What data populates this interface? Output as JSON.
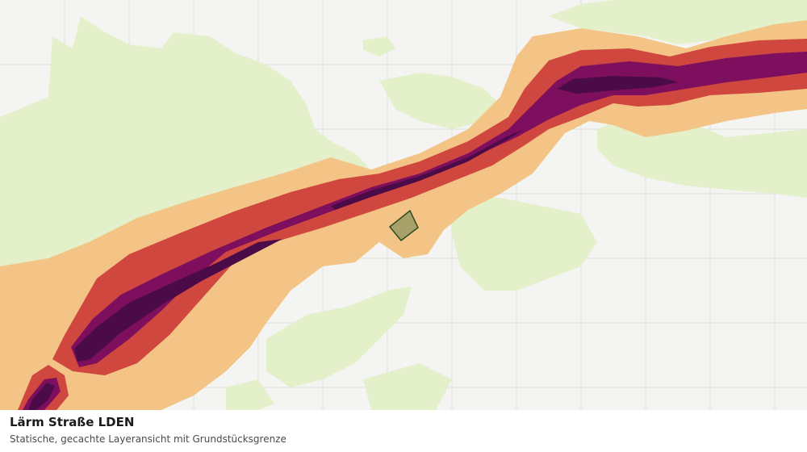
{
  "map": {
    "layer_name": "Lärm Straße LDEN",
    "colors": {
      "background": "#f4f5f3",
      "grid": "#dcdedb",
      "green_area": "#e3f0c9",
      "noise_band_1": "#f3c485",
      "noise_band_2": "#cf473f",
      "noise_band_3": "#7d0f5e",
      "noise_band_4": "#4a0b48",
      "parcel_fill": "#a8a26a",
      "parcel_stroke": "#2d4a1e"
    }
  },
  "caption": {
    "title": "Lärm Straße LDEN",
    "subtitle": "Statische, gecachte Layeransicht mit Grundstücksgrenze"
  }
}
